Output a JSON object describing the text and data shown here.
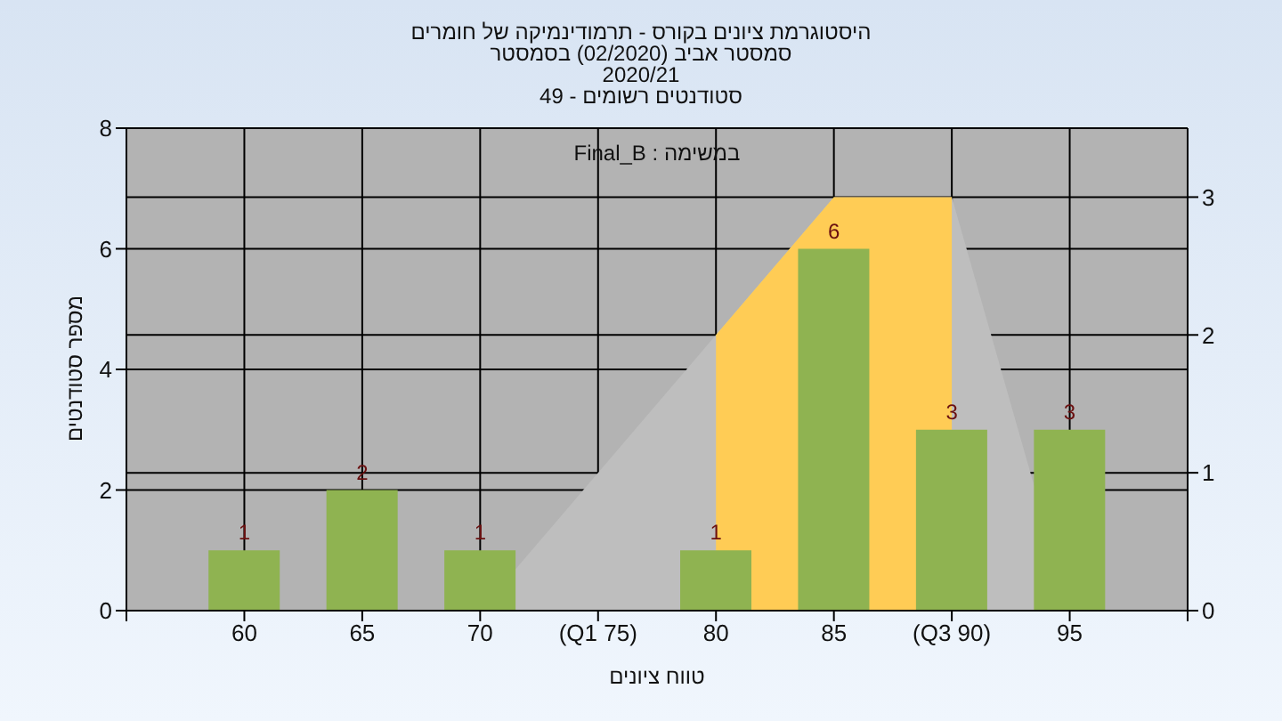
{
  "chart_data": {
    "type": "bar",
    "title": "היסטוגרמת ציונים בקורס - תרמודינמיקה של חומרים",
    "subtitle": "סמסטר אביב (02/2020) בסמסטר\n2020/21\nסטודנטים רשומים - 49",
    "xlabel": "טווח ציונים",
    "ylabel": "מספר סטודנטים",
    "annotations": [
      "במשימה : Final_B"
    ],
    "x": [
      60,
      65,
      70,
      75,
      80,
      85,
      90,
      95
    ],
    "xlim": [
      55,
      100
    ],
    "xticks": [
      {
        "value": 55,
        "label": null
      },
      60,
      65,
      70,
      {
        "value": 75,
        "label": "(Q1 75)"
      },
      80,
      85,
      {
        "value": 90,
        "label": "(Q3 90)"
      },
      95,
      {
        "value": 100,
        "label": null
      }
    ],
    "ylim": [
      0,
      8
    ],
    "yticks": [
      0,
      2,
      4,
      6,
      8
    ],
    "y2lim": [
      0,
      3.5
    ],
    "y2ticks": [
      0,
      1,
      2,
      3
    ],
    "series": [
      {
        "type": "area",
        "axis": "y2",
        "color": "#bebebe",
        "x": [
          70,
          80,
          85,
          90,
          95
        ],
        "values": [
          0,
          2,
          3,
          3,
          0
        ]
      },
      {
        "type": "area",
        "axis": "y2",
        "color": "#ffcc55",
        "x": [
          80,
          85,
          90
        ],
        "values": [
          2,
          3,
          3
        ]
      },
      {
        "color": "#8fb351",
        "values": [
          1,
          2,
          1,
          0,
          1,
          6,
          3,
          3
        ],
        "value_labels": [
          "1",
          "2",
          "1",
          null,
          "1",
          "6",
          "3",
          "3"
        ]
      }
    ],
    "grid": true
  }
}
